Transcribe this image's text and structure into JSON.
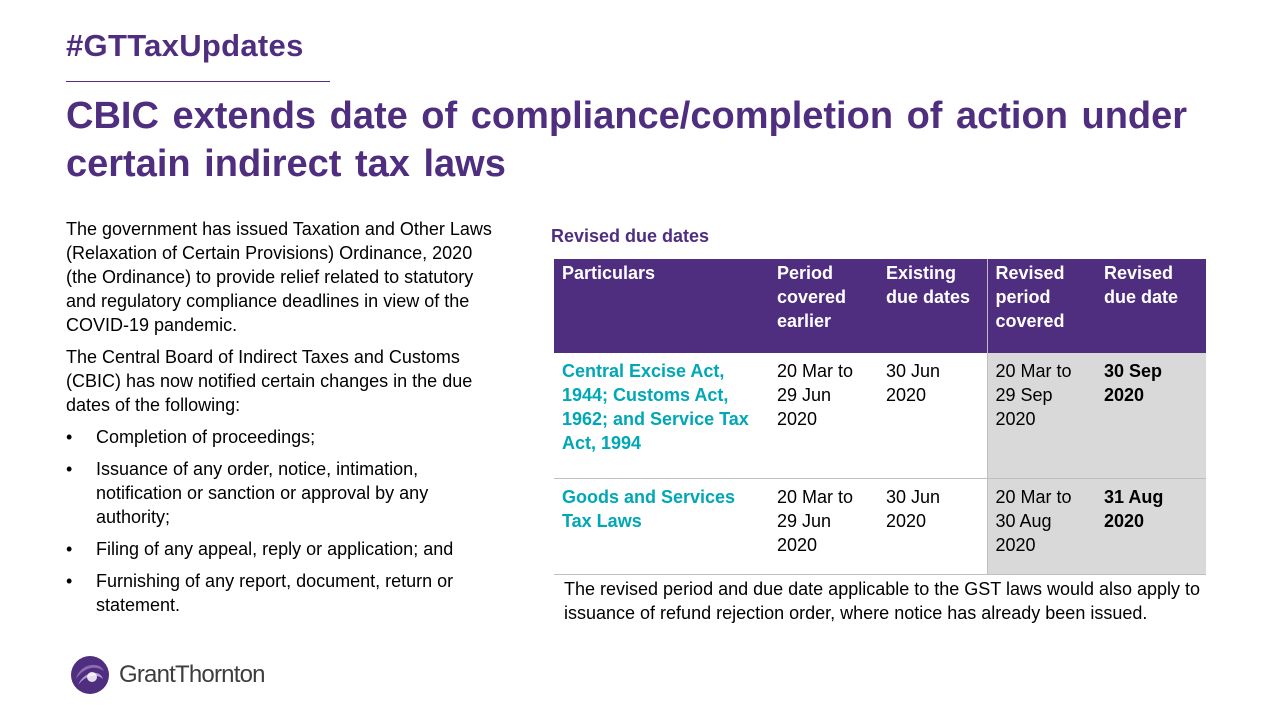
{
  "header": {
    "hashtag": "#GTTaxUpdates",
    "title": "CBIC extends date of compliance/completion of action under certain indirect tax laws"
  },
  "intro": {
    "para1": "The government has issued Taxation and Other Laws (Relaxation of Certain Provisions) Ordinance, 2020 (the Ordinance) to provide relief related to statutory and regulatory compliance deadlines in view of the COVID-19 pandemic.",
    "para2": "The Central Board of Indirect Taxes and Customs (CBIC) has now notified certain changes in the due dates of the following:",
    "bullets": [
      "Completion of proceedings;",
      "Issuance of any order, notice, intimation, notification or sanction or approval by any authority;",
      "Filing of any appeal, reply or application; and",
      "Furnishing of any report, document, return or statement."
    ]
  },
  "table": {
    "title": "Revised due dates",
    "headers": [
      "Particulars",
      "Period covered earlier",
      "Existing due dates",
      "Revised period covered",
      "Revised due date"
    ],
    "rows": [
      [
        "Central Excise Act, 1944; Customs Act, 1962; and Service Tax Act, 1994",
        "20 Mar to 29 Jun 2020",
        "30 Jun 2020",
        "20 Mar to 29 Sep 2020",
        "30 Sep 2020"
      ],
      [
        "Goods and Services Tax Laws",
        "20 Mar to 29 Jun 2020",
        "30 Jun 2020",
        "20 Mar to 30 Aug 2020",
        "31 Aug 2020"
      ]
    ],
    "note": "The revised period and due date applicable to the GST laws would also apply to issuance of refund rejection order, where notice has already been issued."
  },
  "logo": {
    "name": "GrantThornton",
    "icon": "grant-thornton-logo-icon"
  },
  "colors": {
    "brand_purple": "#4f2d7f",
    "accent_teal": "#00a7b5",
    "shade_gray": "#d9d9d9"
  }
}
